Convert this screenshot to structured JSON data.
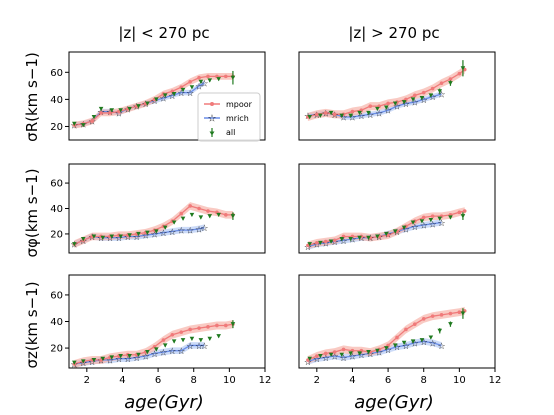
{
  "figure": {
    "column_titles": [
      "|z| < 270 pc",
      "|z| > 270 pc"
    ],
    "xlabel": "age(Gyr)",
    "ylabels": [
      "σR(km s−1)",
      "σφ(km s−1)",
      "σz(km s−1)"
    ],
    "legend_entries": [
      "mpoor",
      "mrich",
      "all"
    ],
    "colors": {
      "mpoor": "#f07a7a",
      "mpoor_band": "#f7b3aa",
      "mrich": "#6a8ee8",
      "mrich_band": "#b6ccf5",
      "all": "#1f7a1f",
      "axis": "#000000"
    }
  },
  "chart_data": [
    {
      "type": "line",
      "panel": "sigma_R, |z|<270 pc",
      "title": "|z| < 270 pc",
      "xlabel": "",
      "ylabel": "σR(km s−1)",
      "xlim": [
        1,
        12
      ],
      "ylim": [
        10,
        75
      ],
      "xticks": [],
      "yticks": [
        20,
        40,
        60
      ],
      "legend": "lower-right",
      "series": [
        {
          "name": "mpoor",
          "x": [
            1.3,
            1.8,
            2.3,
            2.8,
            3.3,
            3.8,
            4.3,
            4.8,
            5.3,
            5.8,
            6.3,
            6.8,
            7.3,
            7.8,
            8.3,
            8.8,
            9.3,
            9.8,
            10.2
          ],
          "y": [
            21,
            22,
            24,
            30,
            30,
            31,
            33,
            35,
            37,
            40,
            44,
            46,
            49,
            53,
            56,
            57,
            57,
            57,
            57
          ],
          "band": 2.5
        },
        {
          "name": "mrich",
          "x": [
            1.3,
            1.8,
            2.3,
            2.8,
            3.3,
            3.8,
            4.3,
            4.8,
            5.3,
            5.8,
            6.3,
            6.8,
            7.3,
            7.8,
            8.3,
            8.6
          ],
          "y": [
            21,
            22,
            24,
            31,
            31,
            30,
            33,
            35,
            37,
            39,
            41,
            43,
            45,
            45,
            50,
            52
          ],
          "band": 2
        },
        {
          "name": "all",
          "x": [
            1.3,
            1.8,
            2.4,
            2.8,
            3.4,
            3.9,
            4.4,
            4.9,
            5.4,
            5.9,
            6.4,
            6.9,
            7.4,
            7.9,
            8.4,
            8.9,
            9.4,
            10.2
          ],
          "y": [
            22,
            21,
            27,
            33,
            32,
            32,
            33,
            35,
            37,
            40,
            43,
            44,
            47,
            49,
            53,
            54,
            55,
            56
          ],
          "err": [
            1,
            1,
            1,
            1,
            1,
            1,
            1,
            1,
            1,
            1,
            1,
            1,
            1,
            1,
            1,
            1,
            1,
            5
          ]
        }
      ]
    },
    {
      "type": "line",
      "panel": "sigma_R, |z|>270 pc",
      "title": "|z| > 270 pc",
      "xlabel": "",
      "ylabel": "",
      "xlim": [
        1,
        12
      ],
      "ylim": [
        10,
        75
      ],
      "xticks": [],
      "yticks": [],
      "legend": "",
      "series": [
        {
          "name": "mpoor",
          "x": [
            1.5,
            2,
            2.5,
            3,
            3.5,
            4,
            4.5,
            5,
            5.5,
            6,
            6.5,
            7,
            7.5,
            8,
            8.5,
            9,
            9.5,
            10,
            10.3
          ],
          "y": [
            27,
            29,
            30,
            29,
            29,
            31,
            32,
            35,
            35,
            37,
            38,
            40,
            43,
            45,
            48,
            52,
            55,
            59,
            62
          ],
          "band": 3
        },
        {
          "name": "mrich",
          "x": [
            1.5,
            2,
            2.5,
            3,
            3.5,
            4,
            4.5,
            5,
            5.5,
            6,
            6.5,
            7,
            7.5,
            8,
            8.5,
            9
          ],
          "y": [
            28,
            29,
            30,
            29,
            27,
            27,
            28,
            29,
            30,
            32,
            35,
            37,
            38,
            40,
            42,
            44
          ],
          "band": 2
        },
        {
          "name": "all",
          "x": [
            1.6,
            2.2,
            2.8,
            3.4,
            3.9,
            4.4,
            4.9,
            5.4,
            5.9,
            6.4,
            6.9,
            7.4,
            7.9,
            8.4,
            8.9,
            9.5,
            10.2
          ],
          "y": [
            27,
            28,
            30,
            28,
            28,
            30,
            30,
            33,
            34,
            37,
            38,
            40,
            41,
            43,
            46,
            52,
            63
          ],
          "err": [
            1,
            1,
            1,
            1,
            1,
            1,
            1,
            1,
            1,
            1,
            1,
            1,
            1,
            1,
            2,
            2,
            6
          ]
        }
      ]
    },
    {
      "type": "line",
      "panel": "sigma_phi, |z|<270 pc",
      "title": "",
      "xlabel": "",
      "ylabel": "σφ(km s−1)",
      "xlim": [
        1,
        12
      ],
      "ylim": [
        5,
        75
      ],
      "xticks": [],
      "yticks": [
        20,
        40,
        60
      ],
      "legend": "",
      "series": [
        {
          "name": "mpoor",
          "x": [
            1.3,
            1.8,
            2.3,
            2.8,
            3.3,
            3.8,
            4.3,
            4.8,
            5.3,
            5.8,
            6.3,
            6.8,
            7.3,
            7.8,
            8.3,
            8.8,
            9.3,
            9.8,
            10.2
          ],
          "y": [
            12,
            15,
            18,
            18,
            18,
            19,
            19,
            20,
            21,
            23,
            26,
            30,
            36,
            42,
            40,
            38,
            37,
            35,
            35
          ],
          "band": 3
        },
        {
          "name": "mrich",
          "x": [
            1.3,
            1.8,
            2.3,
            2.8,
            3.3,
            3.8,
            4.3,
            4.8,
            5.3,
            5.8,
            6.3,
            6.8,
            7.3,
            7.8,
            8.3,
            8.6
          ],
          "y": [
            12,
            15,
            18,
            17,
            17,
            17,
            18,
            18,
            19,
            20,
            21,
            22,
            23,
            23,
            24,
            25
          ],
          "band": 2.5
        },
        {
          "name": "all",
          "x": [
            1.3,
            1.8,
            2.4,
            2.9,
            3.4,
            3.9,
            4.4,
            4.9,
            5.4,
            5.9,
            6.4,
            6.9,
            7.4,
            7.9,
            8.4,
            8.9,
            9.4,
            10.2
          ],
          "y": [
            12,
            16,
            18,
            17,
            18,
            18,
            19,
            20,
            21,
            22,
            25,
            29,
            32,
            35,
            33,
            34,
            35,
            34
          ],
          "err": [
            1,
            1,
            1,
            1,
            1,
            1,
            1,
            1,
            1,
            1,
            1,
            1,
            1,
            1,
            1,
            1,
            1,
            3
          ]
        }
      ]
    },
    {
      "type": "line",
      "panel": "sigma_phi, |z|>270 pc",
      "title": "",
      "xlabel": "",
      "ylabel": "",
      "xlim": [
        1,
        12
      ],
      "ylim": [
        5,
        75
      ],
      "xticks": [],
      "yticks": [],
      "legend": "",
      "series": [
        {
          "name": "mpoor",
          "x": [
            1.5,
            2,
            2.5,
            3,
            3.5,
            4,
            4.5,
            5,
            5.5,
            6,
            6.5,
            7,
            7.5,
            8,
            8.5,
            9,
            9.5,
            10,
            10.3
          ],
          "y": [
            11,
            13,
            14,
            15,
            18,
            18,
            18,
            17,
            18,
            19,
            22,
            26,
            30,
            33,
            34,
            34,
            35,
            37,
            38
          ],
          "band": 3
        },
        {
          "name": "mrich",
          "x": [
            1.5,
            2,
            2.5,
            3,
            3.5,
            4,
            4.5,
            5,
            5.5,
            6,
            6.5,
            7,
            7.5,
            8,
            8.5,
            9
          ],
          "y": [
            10,
            12,
            13,
            14,
            15,
            16,
            17,
            17,
            18,
            20,
            22,
            24,
            26,
            27,
            28,
            29
          ],
          "band": 2.5
        },
        {
          "name": "all",
          "x": [
            1.6,
            2.2,
            2.8,
            3.4,
            3.9,
            4.4,
            4.9,
            5.4,
            5.9,
            6.4,
            6.9,
            7.4,
            7.9,
            8.4,
            8.9,
            9.5,
            10.2
          ],
          "y": [
            12,
            13,
            14,
            16,
            16,
            17,
            17,
            18,
            20,
            22,
            25,
            29,
            30,
            31,
            32,
            33,
            34
          ],
          "err": [
            1,
            1,
            1,
            1,
            1,
            1,
            1,
            1,
            1,
            1,
            1,
            1,
            1,
            1,
            1,
            1,
            3
          ]
        }
      ]
    },
    {
      "type": "line",
      "panel": "sigma_z, |z|<270 pc",
      "title": "",
      "xlabel": "age(Gyr)",
      "ylabel": "σz(km s−1)",
      "xlim": [
        1,
        12
      ],
      "ylim": [
        5,
        75
      ],
      "xticks": [
        2,
        4,
        6,
        8,
        10,
        12
      ],
      "yticks": [
        20,
        40,
        60
      ],
      "legend": "",
      "series": [
        {
          "name": "mpoor",
          "x": [
            1.3,
            1.8,
            2.3,
            2.8,
            3.3,
            3.8,
            4.3,
            4.8,
            5.3,
            5.8,
            6.3,
            6.8,
            7.3,
            7.8,
            8.3,
            8.8,
            9.3,
            9.8,
            10.2
          ],
          "y": [
            8,
            10,
            11,
            11,
            13,
            14,
            15,
            15,
            17,
            21,
            26,
            30,
            32,
            34,
            35,
            36,
            37,
            37,
            38
          ],
          "band": 3
        },
        {
          "name": "mrich",
          "x": [
            1.3,
            1.8,
            2.3,
            2.8,
            3.3,
            3.8,
            4.3,
            4.8,
            5.3,
            5.8,
            6.3,
            6.8,
            7.3,
            7.8,
            8.3,
            8.6
          ],
          "y": [
            8,
            9,
            10,
            11,
            11,
            12,
            12,
            13,
            14,
            16,
            17,
            18,
            18,
            22,
            22,
            22
          ],
          "band": 2.5
        },
        {
          "name": "all",
          "x": [
            1.3,
            1.8,
            2.4,
            2.9,
            3.4,
            3.9,
            4.4,
            4.9,
            5.4,
            5.9,
            6.4,
            6.9,
            7.4,
            7.9,
            8.4,
            8.9,
            9.4,
            10.2
          ],
          "y": [
            9,
            10,
            11,
            12,
            13,
            14,
            14,
            15,
            17,
            19,
            22,
            25,
            26,
            27,
            26,
            27,
            29,
            38
          ],
          "err": [
            1,
            1,
            1,
            1,
            1,
            1,
            1,
            1,
            1,
            1,
            1,
            1,
            1,
            1,
            1,
            1,
            1,
            3
          ]
        }
      ]
    },
    {
      "type": "line",
      "panel": "sigma_z, |z|>270 pc",
      "title": "",
      "xlabel": "age(Gyr)",
      "ylabel": "",
      "xlim": [
        1,
        12
      ],
      "ylim": [
        5,
        75
      ],
      "xticks": [
        2,
        4,
        6,
        8,
        10,
        12
      ],
      "yticks": [],
      "legend": "",
      "series": [
        {
          "name": "mpoor",
          "x": [
            1.5,
            2,
            2.5,
            3,
            3.5,
            4,
            4.5,
            5,
            5.5,
            6,
            6.5,
            7,
            7.5,
            8,
            8.5,
            9,
            9.5,
            10,
            10.3
          ],
          "y": [
            11,
            14,
            16,
            17,
            19,
            18,
            18,
            17,
            19,
            22,
            28,
            34,
            38,
            42,
            44,
            45,
            46,
            47,
            48
          ],
          "band": 3
        },
        {
          "name": "mrich",
          "x": [
            1.5,
            2,
            2.5,
            3,
            3.5,
            4,
            4.5,
            5,
            5.5,
            6,
            6.5,
            7,
            7.5,
            8,
            8.5,
            9
          ],
          "y": [
            10,
            12,
            13,
            14,
            13,
            14,
            15,
            16,
            17,
            19,
            21,
            22,
            24,
            25,
            24,
            22
          ],
          "band": 2.5
        },
        {
          "name": "all",
          "x": [
            1.6,
            2.2,
            2.8,
            3.4,
            3.9,
            4.4,
            4.9,
            5.4,
            5.9,
            6.4,
            6.9,
            7.4,
            7.9,
            8.4,
            8.9,
            9.5,
            10.2
          ],
          "y": [
            12,
            14,
            15,
            15,
            16,
            16,
            17,
            18,
            20,
            22,
            24,
            25,
            26,
            28,
            33,
            38,
            46
          ],
          "err": [
            1,
            1,
            1,
            1,
            1,
            1,
            1,
            1,
            1,
            1,
            1,
            1,
            1,
            1,
            2,
            2,
            4
          ]
        }
      ]
    }
  ]
}
